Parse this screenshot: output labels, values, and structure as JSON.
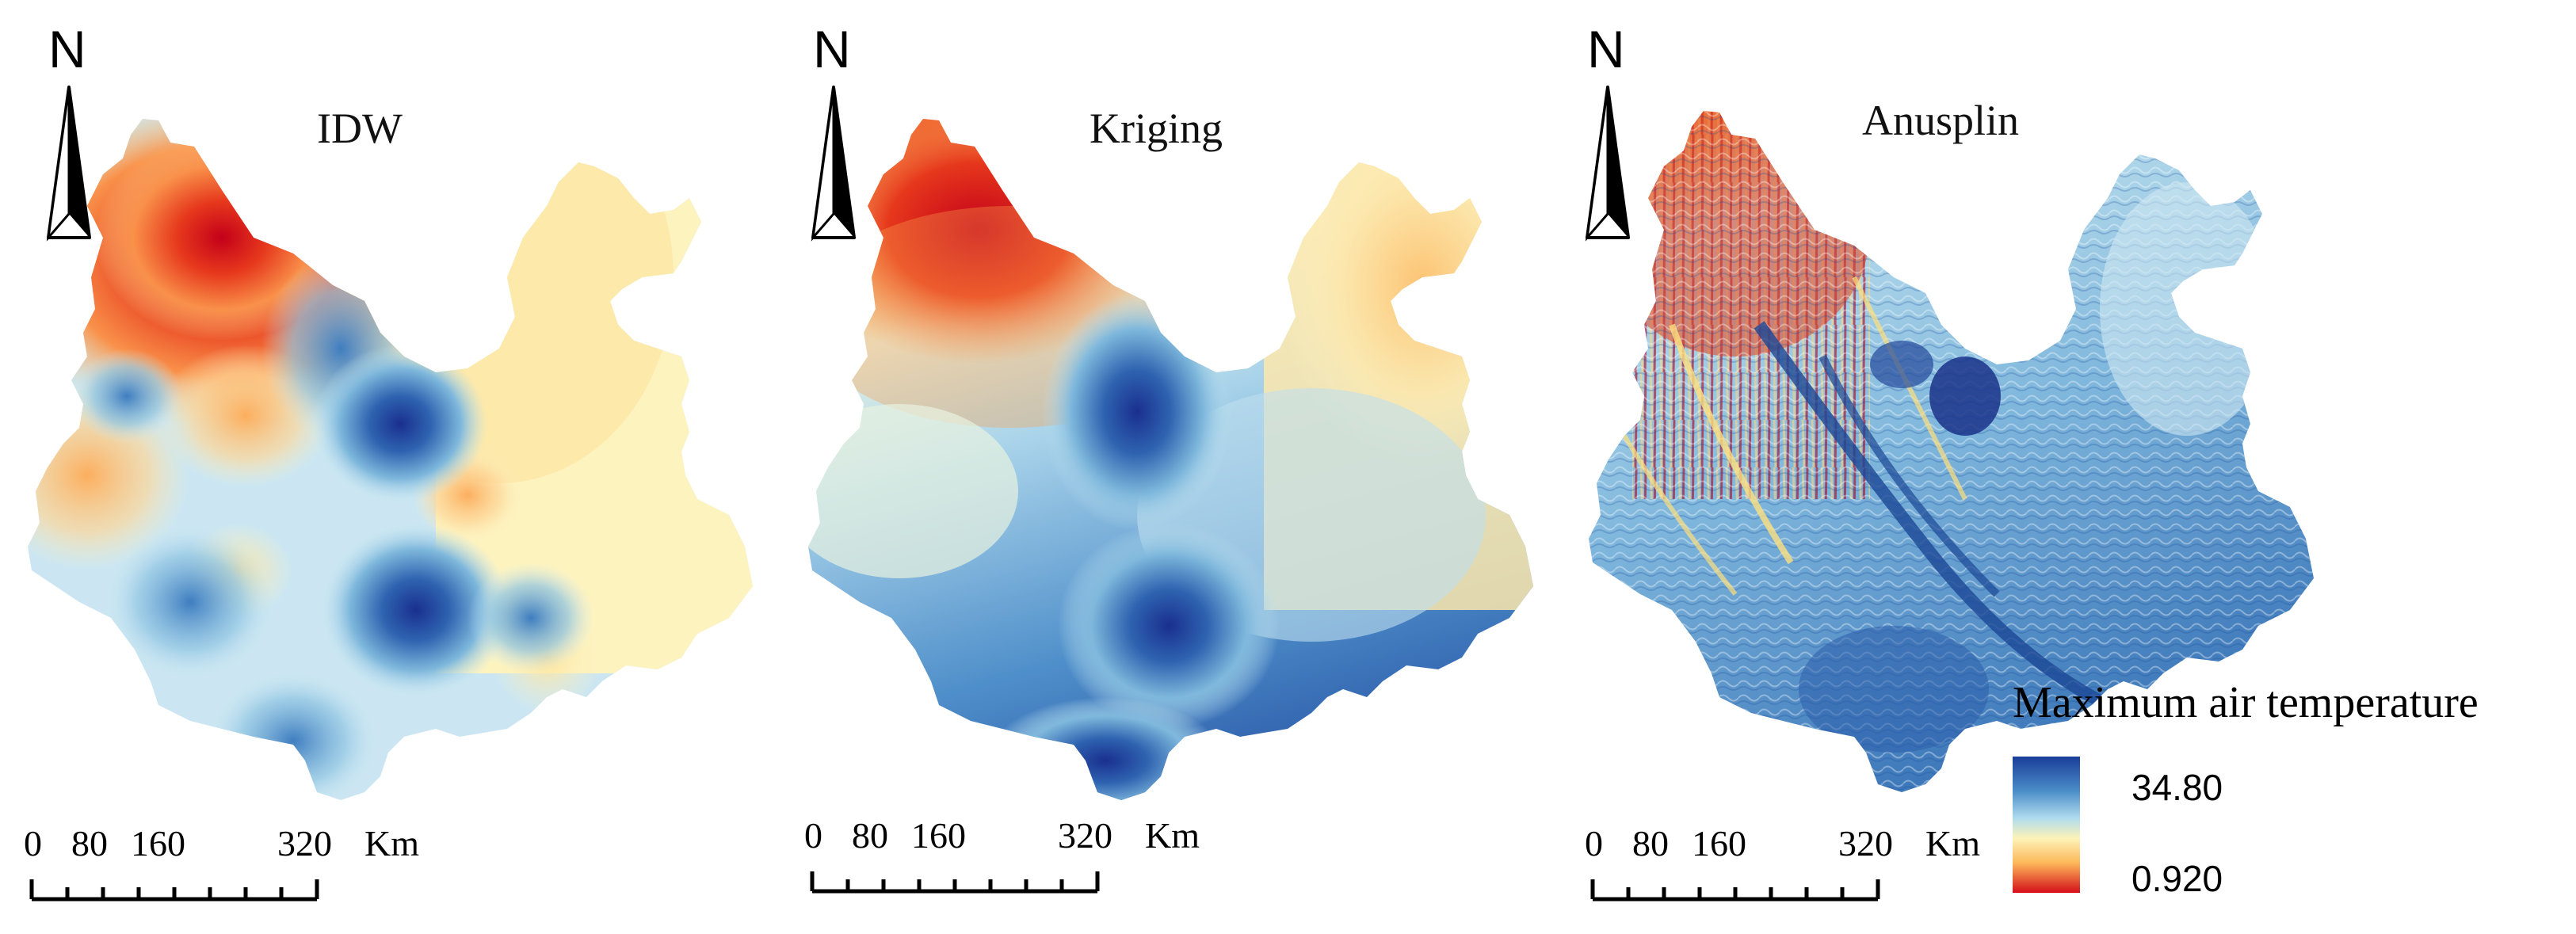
{
  "panels": [
    {
      "title": "IDW",
      "method": "idw"
    },
    {
      "title": "Kriging",
      "method": "kriging"
    },
    {
      "title": "Anusplin",
      "method": "anusplin"
    }
  ],
  "north_arrow": {
    "label": "N"
  },
  "scale_bar": {
    "ticks": [
      "0",
      "80",
      "160",
      "320"
    ],
    "unit": "Km"
  },
  "legend": {
    "title": "Maximum air temperature",
    "high": "34.80",
    "low": "0.920",
    "colors": [
      "#1a3d99",
      "#4a8cc8",
      "#aedbee",
      "#fdf3b8",
      "#fdb85a",
      "#e8341c",
      "#c8001a"
    ]
  }
}
